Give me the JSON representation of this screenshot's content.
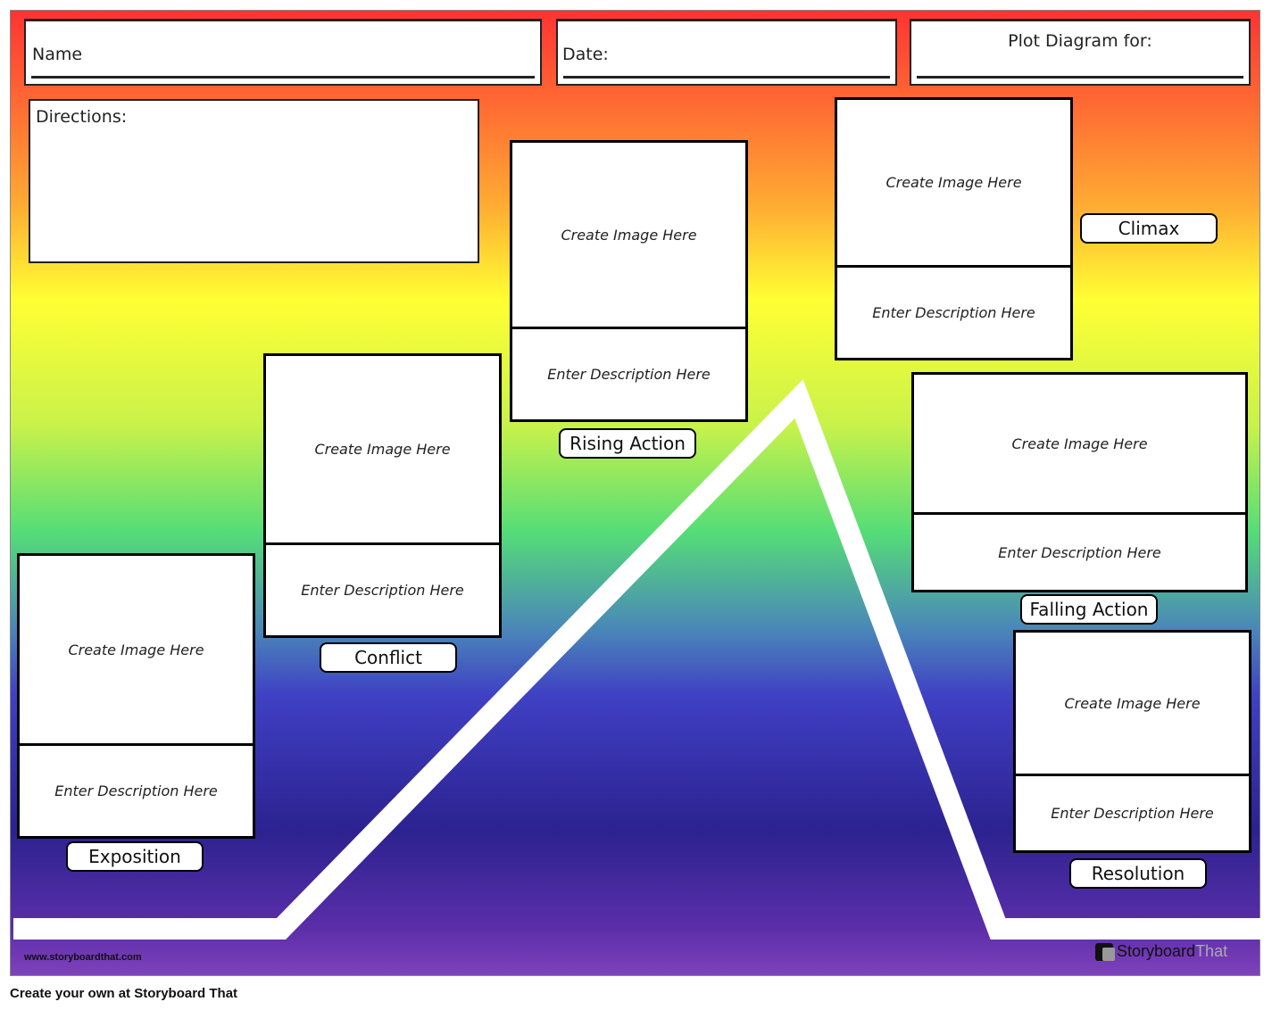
{
  "header": {
    "name_label": "Name",
    "date_label": "Date:",
    "plot_label": "Plot Diagram for:"
  },
  "directions_label": "Directions:",
  "cells": [
    {
      "stage": "Exposition",
      "image": "Create Image Here",
      "description": "Enter Description Here"
    },
    {
      "stage": "Conflict",
      "image": "Create Image Here",
      "description": "Enter Description Here"
    },
    {
      "stage": "Rising Action",
      "image": "Create Image Here",
      "description": "Enter Description Here"
    },
    {
      "stage": "Climax",
      "image": "Create Image Here",
      "description": "Enter Description Here"
    },
    {
      "stage": "Falling Action",
      "image": "Create Image Here",
      "description": "Enter Description Here"
    },
    {
      "stage": "Resolution",
      "image": "Create Image Here",
      "description": "Enter Description Here"
    }
  ],
  "footer": {
    "website": "www.storyboardthat.com",
    "logo_text_1": "Storyboard",
    "logo_text_2": "That",
    "caption": "Create your own at Storyboard That"
  }
}
